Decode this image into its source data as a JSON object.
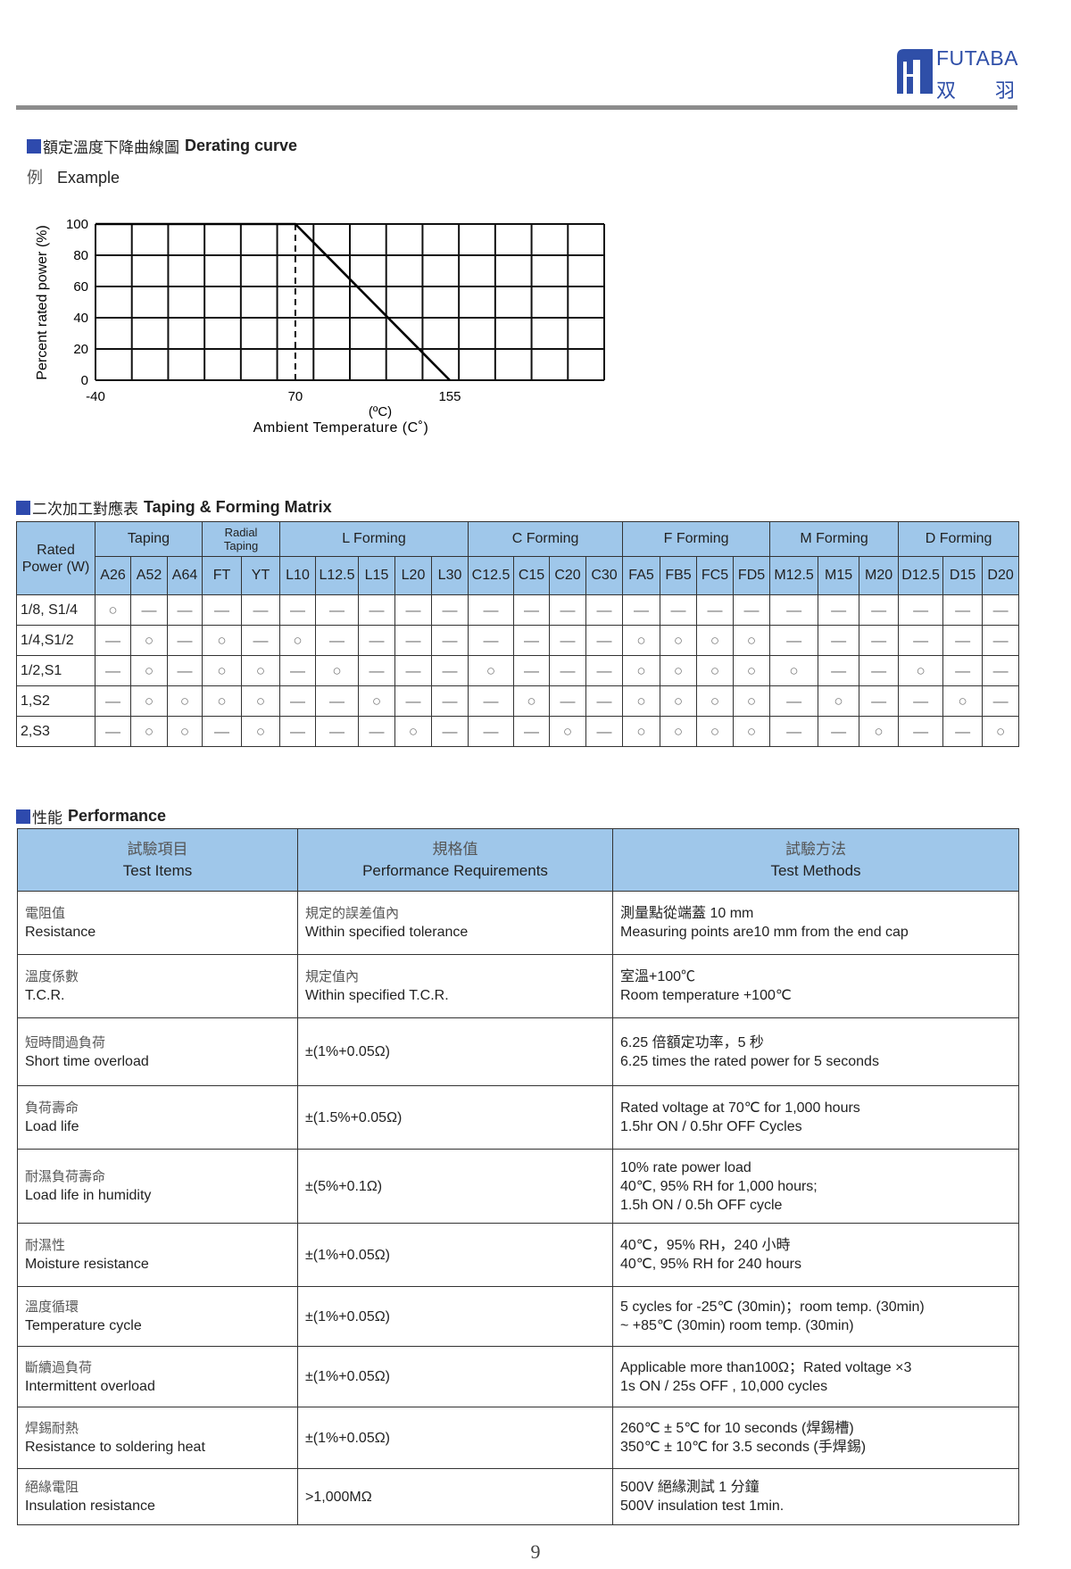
{
  "brand": {
    "name_en": "FUTABA",
    "name_zh_1": "双",
    "name_zh_2": "羽",
    "color": "#2f4fa8"
  },
  "accent_color": "#2e4aad",
  "table_header_color": "#9fc7ea",
  "derating": {
    "title_zh": "額定溫度下降曲線圖",
    "title_en": "Derating curve",
    "example_zh": "例",
    "example_en": "Example"
  },
  "chart_data": {
    "type": "line",
    "ylabel": "Percent rated power (%)",
    "xlabel": "Ambient Temperature (C˚)",
    "xunit": "(ºC)",
    "xlim": [
      -40,
      240
    ],
    "ylim": [
      0,
      100
    ],
    "xticks": [
      -40,
      70,
      155
    ],
    "yticks": [
      0,
      20,
      40,
      60,
      80,
      100
    ],
    "grid": true,
    "grid_x_step": 20,
    "grid_y_step": 20,
    "series": [
      {
        "x": [
          -40,
          70,
          155
        ],
        "y": [
          100,
          100,
          0
        ]
      }
    ],
    "reference_line": {
      "x": 70,
      "style": "dashed"
    }
  },
  "matrix": {
    "title_zh": "二次加工對應表",
    "title_en": "Taping & Forming Matrix",
    "rated_power_label_1": "Rated",
    "rated_power_label_2": "Power (W)",
    "groups": [
      {
        "label": "Taping",
        "span": 3
      },
      {
        "label": "Radial",
        "label2": "Taping",
        "span": 2
      },
      {
        "label": "L  Forming",
        "span": 5
      },
      {
        "label": "C  Forming",
        "span": 4
      },
      {
        "label": "F  Forming",
        "span": 4
      },
      {
        "label": "M  Forming",
        "span": 3
      },
      {
        "label": "D  Forming",
        "span": 3
      }
    ],
    "columns": [
      "A26",
      "A52",
      "A64",
      "FT",
      "YT",
      "L10",
      "L12.5",
      "L15",
      "L20",
      "L30",
      "C12.5",
      "C15",
      "C20",
      "C30",
      "FA5",
      "FB5",
      "FC5",
      "FD5",
      "M12.5",
      "M15",
      "M20",
      "D12.5",
      "D15",
      "D20"
    ],
    "rows": [
      {
        "power": "1/8, S1/4",
        "cells": [
          "○",
          "—",
          "—",
          "—",
          "—",
          "—",
          "—",
          "—",
          "—",
          "—",
          "—",
          "—",
          "—",
          "—",
          "—",
          "—",
          "—",
          "—",
          "—",
          "—",
          "—",
          "—",
          "—",
          "—"
        ]
      },
      {
        "power": "1/4,S1/2",
        "cells": [
          "—",
          "○",
          "—",
          "○",
          "—",
          "○",
          "—",
          "—",
          "—",
          "—",
          "—",
          "—",
          "—",
          "—",
          "○",
          "○",
          "○",
          "○",
          "—",
          "—",
          "—",
          "—",
          "—",
          "—"
        ]
      },
      {
        "power": "1/2,S1",
        "cells": [
          "—",
          "○",
          "—",
          "○",
          "○",
          "—",
          "○",
          "—",
          "—",
          "—",
          "○",
          "—",
          "—",
          "—",
          "○",
          "○",
          "○",
          "○",
          "○",
          "—",
          "—",
          "○",
          "—",
          "—"
        ]
      },
      {
        "power": "1,S2",
        "cells": [
          "—",
          "○",
          "○",
          "○",
          "○",
          "—",
          "—",
          "○",
          "—",
          "—",
          "—",
          "○",
          "—",
          "—",
          "○",
          "○",
          "○",
          "○",
          "—",
          "○",
          "—",
          "—",
          "○",
          "—"
        ]
      },
      {
        "power": "2,S3",
        "cells": [
          "—",
          "○",
          "○",
          "—",
          "○",
          "—",
          "—",
          "—",
          "○",
          "—",
          "—",
          "—",
          "○",
          "—",
          "○",
          "○",
          "○",
          "○",
          "—",
          "—",
          "○",
          "—",
          "—",
          "○"
        ]
      }
    ]
  },
  "performance": {
    "title_zh": "性能",
    "title_en": "Performance",
    "headers": [
      {
        "zh": "試驗項目",
        "en": "Test Items"
      },
      {
        "zh": "規格值",
        "en": "Performance Requirements"
      },
      {
        "zh": "試驗方法",
        "en": "Test Methods"
      }
    ],
    "rows": [
      {
        "item_zh": "電阻值",
        "item_en": "Resistance",
        "req": [
          "規定的誤差值內",
          "Within specified tolerance"
        ],
        "method": [
          "測量點從端蓋 10 mm",
          "Measuring points are10 mm from the end cap"
        ]
      },
      {
        "item_zh": "溫度係數",
        "item_en": "T.C.R.",
        "req": [
          "規定值內",
          "Within specified T.C.R."
        ],
        "method": [
          "室溫+100℃",
          "Room temperature +100℃"
        ]
      },
      {
        "item_zh": "短時間過負荷",
        "item_en": "Short time overload",
        "req": [
          "±(1%+0.05Ω)"
        ],
        "method": [
          "6.25 倍額定功率，5 秒",
          "6.25 times the rated power for 5 seconds"
        ]
      },
      {
        "item_zh": "負荷壽命",
        "item_en": "Load life",
        "req": [
          "±(1.5%+0.05Ω)"
        ],
        "method": [
          "Rated voltage at 70℃ for 1,000 hours",
          "1.5hr ON / 0.5hr OFF Cycles"
        ]
      },
      {
        "item_zh": "耐濕負荷壽命",
        "item_en": "Load life in humidity",
        "req": [
          "±(5%+0.1Ω)"
        ],
        "method": [
          "10% rate power load",
          "40℃, 95% RH for 1,000 hours;",
          "1.5h ON / 0.5h OFF cycle"
        ]
      },
      {
        "item_zh": "耐濕性",
        "item_en": "Moisture resistance",
        "req": [
          "±(1%+0.05Ω)"
        ],
        "method": [
          "40℃，95% RH，240 小時",
          "40℃, 95% RH for 240 hours"
        ]
      },
      {
        "item_zh": "溫度循環",
        "item_en": "Temperature cycle",
        "req": [
          "±(1%+0.05Ω)"
        ],
        "method": [
          "5 cycles for -25℃ (30min)；room temp. (30min)",
          "~ +85℃ (30min) room temp. (30min)"
        ]
      },
      {
        "item_zh": "斷續過負荷",
        "item_en": "Intermittent overload",
        "req": [
          "±(1%+0.05Ω)"
        ],
        "method": [
          "Applicable more than100Ω；Rated voltage ×3",
          "1s ON / 25s OFF , 10,000 cycles"
        ]
      },
      {
        "item_zh": "焊錫耐熱",
        "item_en": "Resistance to soldering heat",
        "req": [
          "±(1%+0.05Ω)"
        ],
        "method": [
          "260℃ ± 5℃ for 10 seconds (焊錫槽)",
          "350℃ ± 10℃ for 3.5 seconds (手焊錫)"
        ]
      },
      {
        "item_zh": "絕緣電阻",
        "item_en": "Insulation resistance",
        "req": [
          ">1,000MΩ"
        ],
        "method": [
          "500V 絕緣測試 1 分鐘",
          "500V insulation test 1min."
        ]
      }
    ]
  },
  "page_number": "9"
}
